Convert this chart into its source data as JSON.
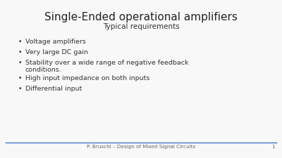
{
  "title": "Single-Ended operational amplifiers",
  "subtitle": "Typical requirements",
  "bullet_points": [
    "Voltage amplifiers",
    "Very large DC gain",
    "Stability over a wide range of negative feedback\nconditions.",
    "High input impedance on both inputs",
    "Differential input"
  ],
  "footer_text": "P. Bruschi – Design of Mixed Signal Circuits",
  "page_number": "1",
  "background_color": "#f8f8f8",
  "title_color": "#222222",
  "subtitle_color": "#333333",
  "bullet_color": "#333333",
  "footer_color": "#666666",
  "line_color": "#4472c4",
  "title_fontsize": 11,
  "subtitle_fontsize": 7.5,
  "bullet_fontsize": 6.8,
  "footer_fontsize": 5.2
}
